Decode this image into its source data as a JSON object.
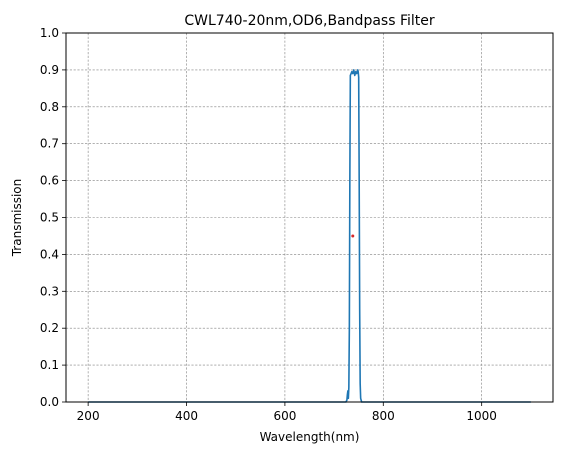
{
  "chart_data": {
    "type": "line",
    "title": "CWL740-20nm,OD6,Bandpass Filter",
    "xlabel": "Wavelength(nm)",
    "ylabel": "Transmission",
    "xlim": [
      155,
      1145
    ],
    "ylim": [
      0,
      1.0
    ],
    "xticks": [
      200,
      400,
      600,
      800,
      1000
    ],
    "yticks": [
      0.0,
      0.1,
      0.2,
      0.3,
      0.4,
      0.5,
      0.6,
      0.7,
      0.8,
      0.9,
      1.0
    ],
    "grid": true,
    "legend": false,
    "colors": {
      "line": "#1f77b4",
      "marker": "#d62728",
      "grid": "#808080"
    },
    "series": [
      {
        "x": [
          200,
          700,
          724,
          726,
          727,
          728,
          729,
          730,
          731,
          732,
          733,
          736,
          738,
          740,
          742,
          744,
          746,
          748,
          749,
          750,
          751,
          752,
          753,
          754,
          756,
          760,
          800,
          1100
        ],
        "y": [
          0,
          0,
          0,
          0.005,
          0.02,
          0.03,
          0.01,
          0.04,
          0.2,
          0.6,
          0.885,
          0.895,
          0.89,
          0.9,
          0.885,
          0.895,
          0.89,
          0.9,
          0.895,
          0.88,
          0.6,
          0.25,
          0.05,
          0.01,
          0,
          0,
          0,
          0
        ]
      }
    ],
    "points": [
      {
        "x": 738,
        "y": 0.45
      }
    ]
  }
}
